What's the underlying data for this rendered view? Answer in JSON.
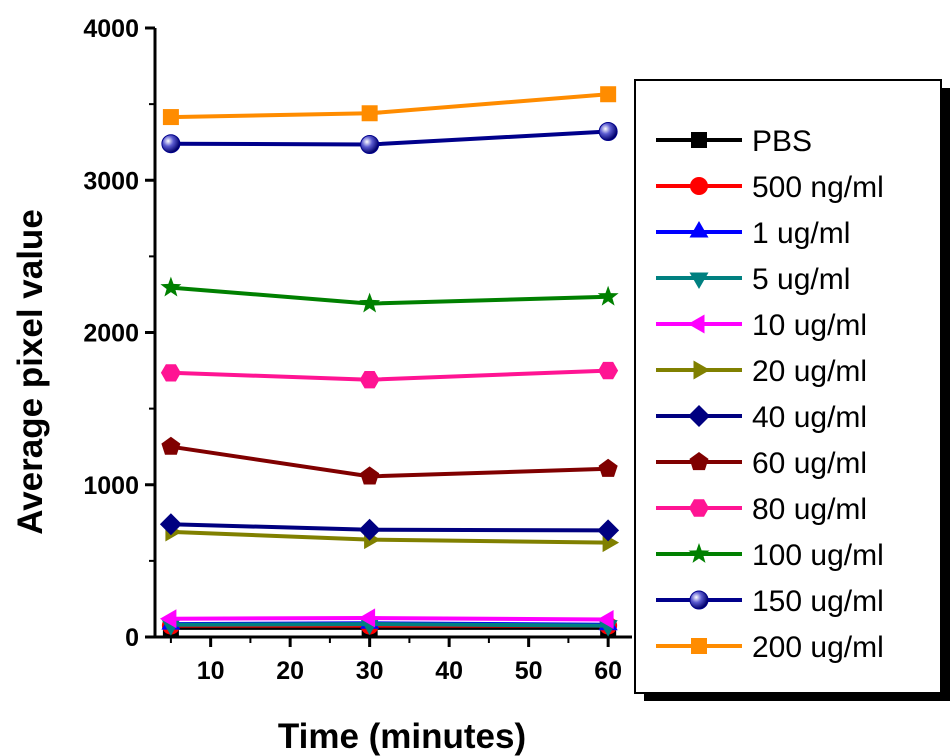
{
  "chart_data": {
    "type": "line",
    "xlabel": "Time (minutes)",
    "ylabel": "Average pixel value",
    "xlim": [
      3,
      63
    ],
    "ylim": [
      0,
      4000
    ],
    "x_ticks": [
      10,
      20,
      30,
      40,
      50,
      60
    ],
    "y_ticks": [
      0,
      1000,
      2000,
      3000,
      4000
    ],
    "x": [
      5,
      30,
      60
    ],
    "legend_position": "right",
    "grid": false,
    "series": [
      {
        "name": "PBS",
        "color": "#000000",
        "marker": "square",
        "values": [
          60,
          60,
          60
        ]
      },
      {
        "name": "500 ng/ml",
        "color": "#ff0000",
        "marker": "circle",
        "values": [
          75,
          75,
          75
        ]
      },
      {
        "name": "1 ug/ml",
        "color": "#0000ff",
        "marker": "triangle-up",
        "values": [
          85,
          90,
          80
        ]
      },
      {
        "name": "5 ug/ml",
        "color": "#008080",
        "marker": "triangle-down",
        "values": [
          80,
          85,
          75
        ]
      },
      {
        "name": "10 ug/ml",
        "color": "#ff00ff",
        "marker": "triangle-left",
        "values": [
          120,
          125,
          115
        ]
      },
      {
        "name": "20 ug/ml",
        "color": "#808000",
        "marker": "triangle-right",
        "values": [
          690,
          640,
          620
        ]
      },
      {
        "name": "40 ug/ml",
        "color": "#000080",
        "marker": "diamond",
        "values": [
          740,
          705,
          700
        ]
      },
      {
        "name": "60 ug/ml",
        "color": "#800000",
        "marker": "pentagon",
        "values": [
          1250,
          1055,
          1105
        ]
      },
      {
        "name": "80 ug/ml",
        "color": "#ff1493",
        "marker": "hexagon",
        "values": [
          1735,
          1690,
          1750
        ]
      },
      {
        "name": "100 ug/ml",
        "color": "#008000",
        "marker": "star",
        "values": [
          2295,
          2190,
          2235
        ]
      },
      {
        "name": "150 ug/ml",
        "color": "#00008b",
        "marker": "sphere",
        "values": [
          3240,
          3235,
          3320
        ]
      },
      {
        "name": "200 ug/ml",
        "color": "#ff8c00",
        "marker": "square",
        "values": [
          3415,
          3440,
          3565
        ]
      }
    ]
  }
}
